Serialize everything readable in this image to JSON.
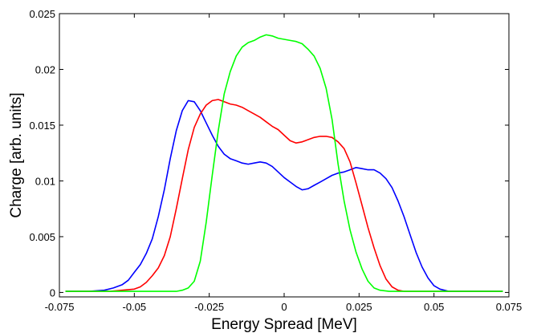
{
  "chart_data": {
    "type": "line",
    "title": "",
    "xlabel": "Energy Spread [MeV]",
    "ylabel": "Charge [arb. units]",
    "xlim": [
      -0.075,
      0.075
    ],
    "ylim": [
      -0.0004,
      0.025
    ],
    "grid": false,
    "legend": "none",
    "xticks": [
      -0.075,
      -0.05,
      -0.025,
      0,
      0.025,
      0.05,
      0.075
    ],
    "xtick_labels": [
      "-0.075",
      "-0.05",
      "-0.025",
      "0",
      "0.025",
      "0.05",
      "0.075"
    ],
    "yticks": [
      0,
      0.005,
      0.01,
      0.015,
      0.02,
      0.025
    ],
    "ytick_labels": [
      "0",
      "0.005",
      "0.01",
      "0.015",
      "0.02",
      "0.025"
    ],
    "series": [
      {
        "color": "#0000ff",
        "x": [
          -0.073,
          -0.065,
          -0.06,
          -0.057,
          -0.054,
          -0.052,
          -0.05,
          -0.048,
          -0.046,
          -0.044,
          -0.042,
          -0.04,
          -0.038,
          -0.036,
          -0.034,
          -0.032,
          -0.03,
          -0.028,
          -0.026,
          -0.024,
          -0.022,
          -0.02,
          -0.018,
          -0.016,
          -0.014,
          -0.012,
          -0.01,
          -0.008,
          -0.006,
          -0.004,
          -0.002,
          0,
          0.002,
          0.004,
          0.006,
          0.008,
          0.01,
          0.012,
          0.014,
          0.016,
          0.018,
          0.02,
          0.022,
          0.024,
          0.026,
          0.028,
          0.03,
          0.032,
          0.034,
          0.036,
          0.038,
          0.04,
          0.042,
          0.044,
          0.046,
          0.048,
          0.05,
          0.052,
          0.055,
          0.06,
          0.065,
          0.073
        ],
        "y": [
          0.0001,
          0.0001,
          0.0002,
          0.0004,
          0.0007,
          0.0011,
          0.0018,
          0.0025,
          0.0035,
          0.0048,
          0.0068,
          0.0092,
          0.012,
          0.0145,
          0.0163,
          0.0172,
          0.0171,
          0.0163,
          0.0152,
          0.0141,
          0.0131,
          0.0124,
          0.012,
          0.0118,
          0.0116,
          0.0115,
          0.0116,
          0.0117,
          0.0116,
          0.0113,
          0.0108,
          0.0103,
          0.0099,
          0.0095,
          0.0092,
          0.0093,
          0.0096,
          0.0099,
          0.0102,
          0.0105,
          0.0107,
          0.0108,
          0.011,
          0.0112,
          0.0111,
          0.011,
          0.011,
          0.0107,
          0.0102,
          0.0094,
          0.0082,
          0.0068,
          0.0052,
          0.0036,
          0.0023,
          0.0013,
          0.0006,
          0.0003,
          0.0001,
          0.0001,
          0.0001,
          0.0001
        ]
      },
      {
        "color": "#ff0000",
        "x": [
          -0.073,
          -0.065,
          -0.058,
          -0.054,
          -0.05,
          -0.048,
          -0.046,
          -0.044,
          -0.042,
          -0.04,
          -0.038,
          -0.036,
          -0.034,
          -0.032,
          -0.03,
          -0.028,
          -0.026,
          -0.024,
          -0.022,
          -0.02,
          -0.018,
          -0.016,
          -0.014,
          -0.012,
          -0.01,
          -0.008,
          -0.006,
          -0.004,
          -0.002,
          0,
          0.002,
          0.004,
          0.006,
          0.008,
          0.01,
          0.012,
          0.014,
          0.016,
          0.018,
          0.02,
          0.022,
          0.024,
          0.026,
          0.028,
          0.03,
          0.032,
          0.034,
          0.036,
          0.038,
          0.04,
          0.042,
          0.045,
          0.05,
          0.06,
          0.073
        ],
        "y": [
          0.0001,
          0.0001,
          0.0001,
          0.0002,
          0.0003,
          0.0005,
          0.0009,
          0.0015,
          0.0022,
          0.0033,
          0.005,
          0.0075,
          0.0102,
          0.0128,
          0.0148,
          0.016,
          0.0168,
          0.0172,
          0.0173,
          0.0171,
          0.0169,
          0.0168,
          0.0166,
          0.0163,
          0.016,
          0.0157,
          0.0153,
          0.0149,
          0.0146,
          0.0141,
          0.0136,
          0.0134,
          0.0135,
          0.0137,
          0.0139,
          0.014,
          0.014,
          0.0139,
          0.0135,
          0.0129,
          0.0117,
          0.0098,
          0.0078,
          0.0058,
          0.004,
          0.0024,
          0.0012,
          0.0005,
          0.0002,
          0.0001,
          0.0001,
          0.0001,
          0.0001,
          0.0001,
          0.0001
        ]
      },
      {
        "color": "#00ff00",
        "x": [
          -0.073,
          -0.06,
          -0.05,
          -0.045,
          -0.04,
          -0.036,
          -0.034,
          -0.032,
          -0.03,
          -0.028,
          -0.026,
          -0.024,
          -0.022,
          -0.02,
          -0.018,
          -0.016,
          -0.014,
          -0.012,
          -0.01,
          -0.008,
          -0.006,
          -0.004,
          -0.002,
          0,
          0.002,
          0.004,
          0.006,
          0.008,
          0.01,
          0.012,
          0.014,
          0.016,
          0.018,
          0.02,
          0.022,
          0.024,
          0.026,
          0.028,
          0.03,
          0.032,
          0.035,
          0.04,
          0.05,
          0.06,
          0.073
        ],
        "y": [
          0.0001,
          0.0001,
          0.0001,
          0.0001,
          0.0001,
          0.0001,
          0.0002,
          0.0004,
          0.001,
          0.0028,
          0.0063,
          0.0105,
          0.0145,
          0.0178,
          0.0198,
          0.0212,
          0.022,
          0.0224,
          0.0226,
          0.0229,
          0.0231,
          0.023,
          0.0228,
          0.0227,
          0.0226,
          0.0225,
          0.0223,
          0.0218,
          0.0212,
          0.0201,
          0.0183,
          0.0155,
          0.0115,
          0.0082,
          0.0056,
          0.0036,
          0.0021,
          0.001,
          0.0004,
          0.0002,
          0.0001,
          0.0001,
          0.0001,
          0.0001,
          0.0001
        ]
      }
    ]
  }
}
